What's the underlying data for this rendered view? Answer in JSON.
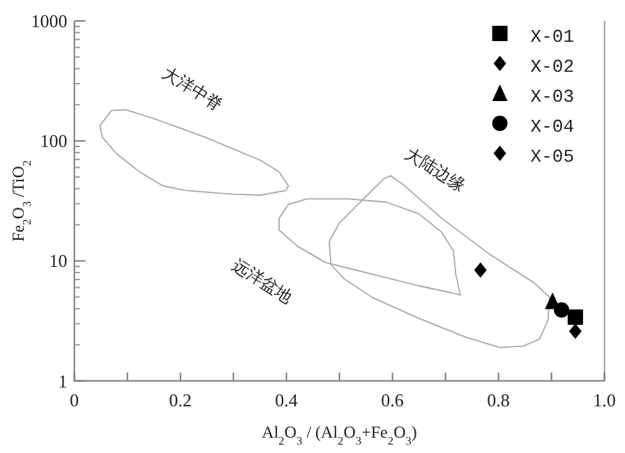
{
  "chart_data": {
    "type": "scatter",
    "xlabel": "Al$_{2}$O$_{3}$ / (Al$_{2}$O$_{3}$+Fe$_{2}$O$_{3}$)",
    "ylabel": "Fe$_{2}$O$_{3}$ /TiO$_{2}$",
    "log": "y",
    "xlim": [
      0,
      1.0
    ],
    "ylim": [
      1,
      1000
    ],
    "xticks": [
      0,
      {
        "value": 0.1,
        "label": null
      },
      0.2,
      {
        "value": 0.3,
        "label": null
      },
      0.4,
      {
        "value": 0.5,
        "label": null
      },
      0.6,
      {
        "value": 0.7,
        "label": null
      },
      0.8,
      {
        "value": 0.9,
        "label": null
      },
      {
        "value": 1.0,
        "label": "1.0"
      }
    ],
    "yticks": [
      1,
      10,
      100,
      1000
    ],
    "grid": false,
    "legend": "top right",
    "series": [
      {
        "name": "X-01",
        "color": "#000000",
        "marker": "square",
        "x": [
          0.945
        ],
        "values": [
          3.4
        ]
      },
      {
        "name": "X-02",
        "color": "#000000",
        "marker": "diamond",
        "x": [
          0.945
        ],
        "values": [
          2.6
        ]
      },
      {
        "name": "X-03",
        "color": "#000000",
        "marker": "triangle",
        "x": [
          0.902
        ],
        "values": [
          4.6
        ]
      },
      {
        "name": "X-04",
        "color": "#000000",
        "marker": "circle",
        "x": [
          0.919
        ],
        "values": [
          3.9
        ]
      },
      {
        "name": "X-05",
        "color": "#000000",
        "marker": "diamond",
        "x": [
          0.766
        ],
        "values": [
          8.4
        ]
      }
    ],
    "annotations": [
      "大洋中脊",
      "大陆边缘",
      "远洋盆地"
    ]
  }
}
